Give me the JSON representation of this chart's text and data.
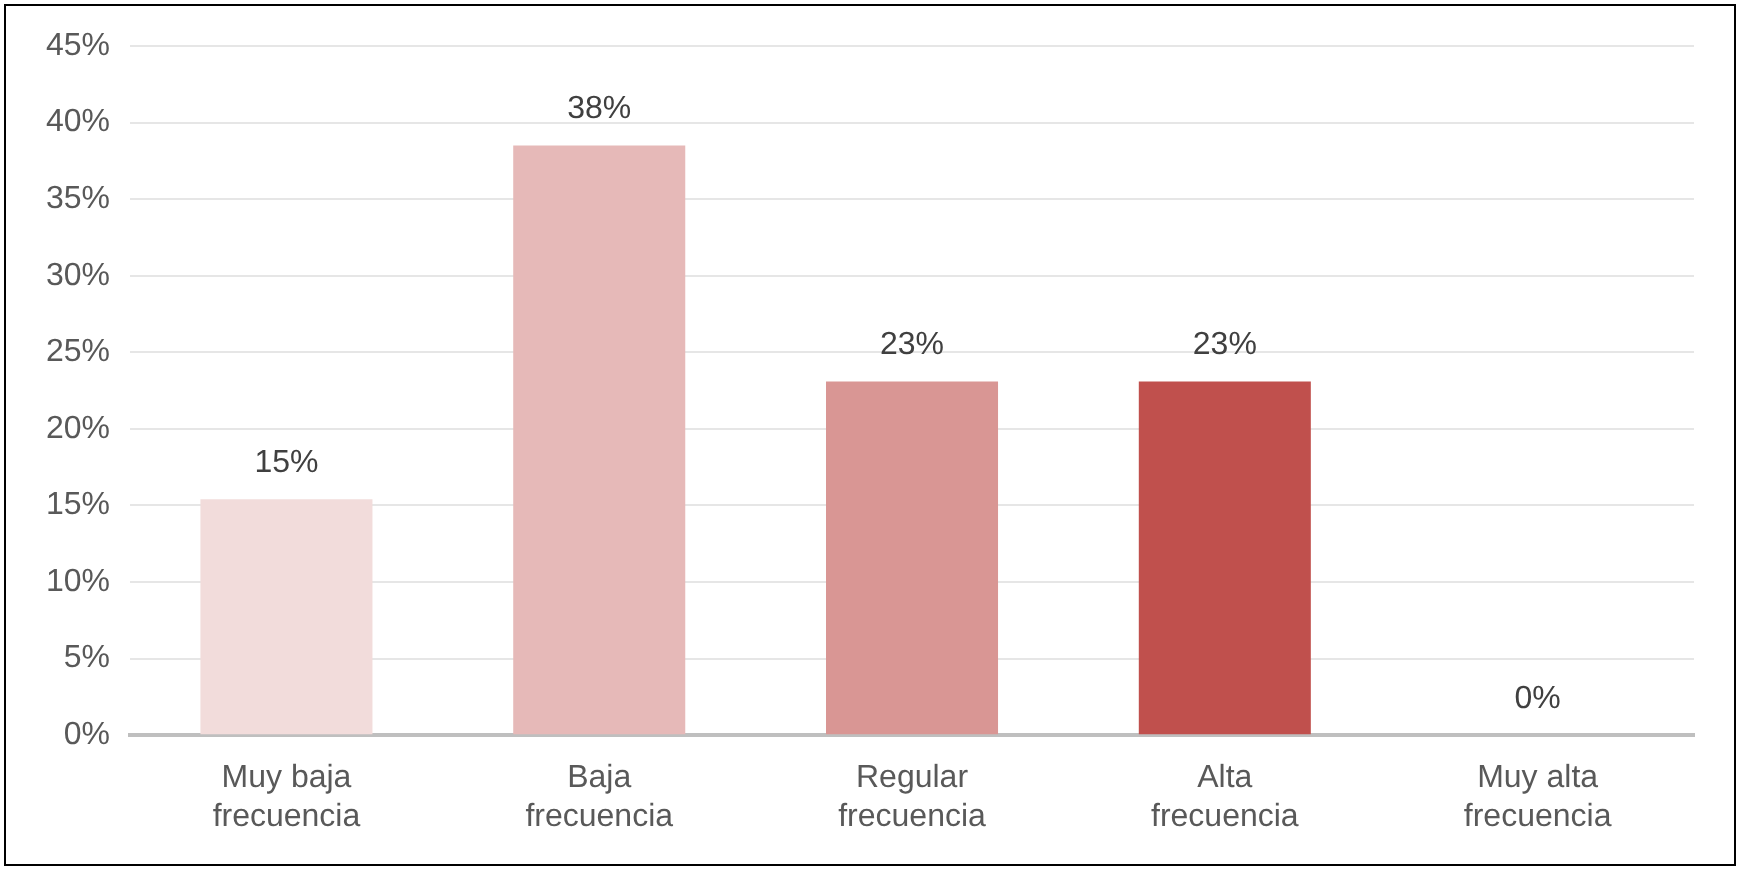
{
  "chart_data": {
    "type": "bar",
    "categories": [
      "Muy baja frecuencia",
      "Baja frecuencia",
      "Regular frecuencia",
      "Alta frecuencia",
      "Muy alta frecuencia"
    ],
    "values": [
      15.4,
      38.5,
      23.1,
      23.1,
      0
    ],
    "value_labels": [
      "15%",
      "38%",
      "23%",
      "23%",
      "0%"
    ],
    "colors": [
      "#f2dcdb",
      "#e6b9b8",
      "#d99694",
      "#c0504d",
      "#963634"
    ],
    "ylim": [
      0,
      45
    ],
    "yticks": [
      {
        "value": 0,
        "label": "0%"
      },
      {
        "value": 5,
        "label": "5%"
      },
      {
        "value": 10,
        "label": "10%"
      },
      {
        "value": 15,
        "label": "15%"
      },
      {
        "value": 20,
        "label": "20%"
      },
      {
        "value": 25,
        "label": "25%"
      },
      {
        "value": 30,
        "label": "30%"
      },
      {
        "value": 35,
        "label": "35%"
      },
      {
        "value": 40,
        "label": "40%"
      },
      {
        "value": 45,
        "label": "45%"
      }
    ],
    "grid": "y"
  }
}
